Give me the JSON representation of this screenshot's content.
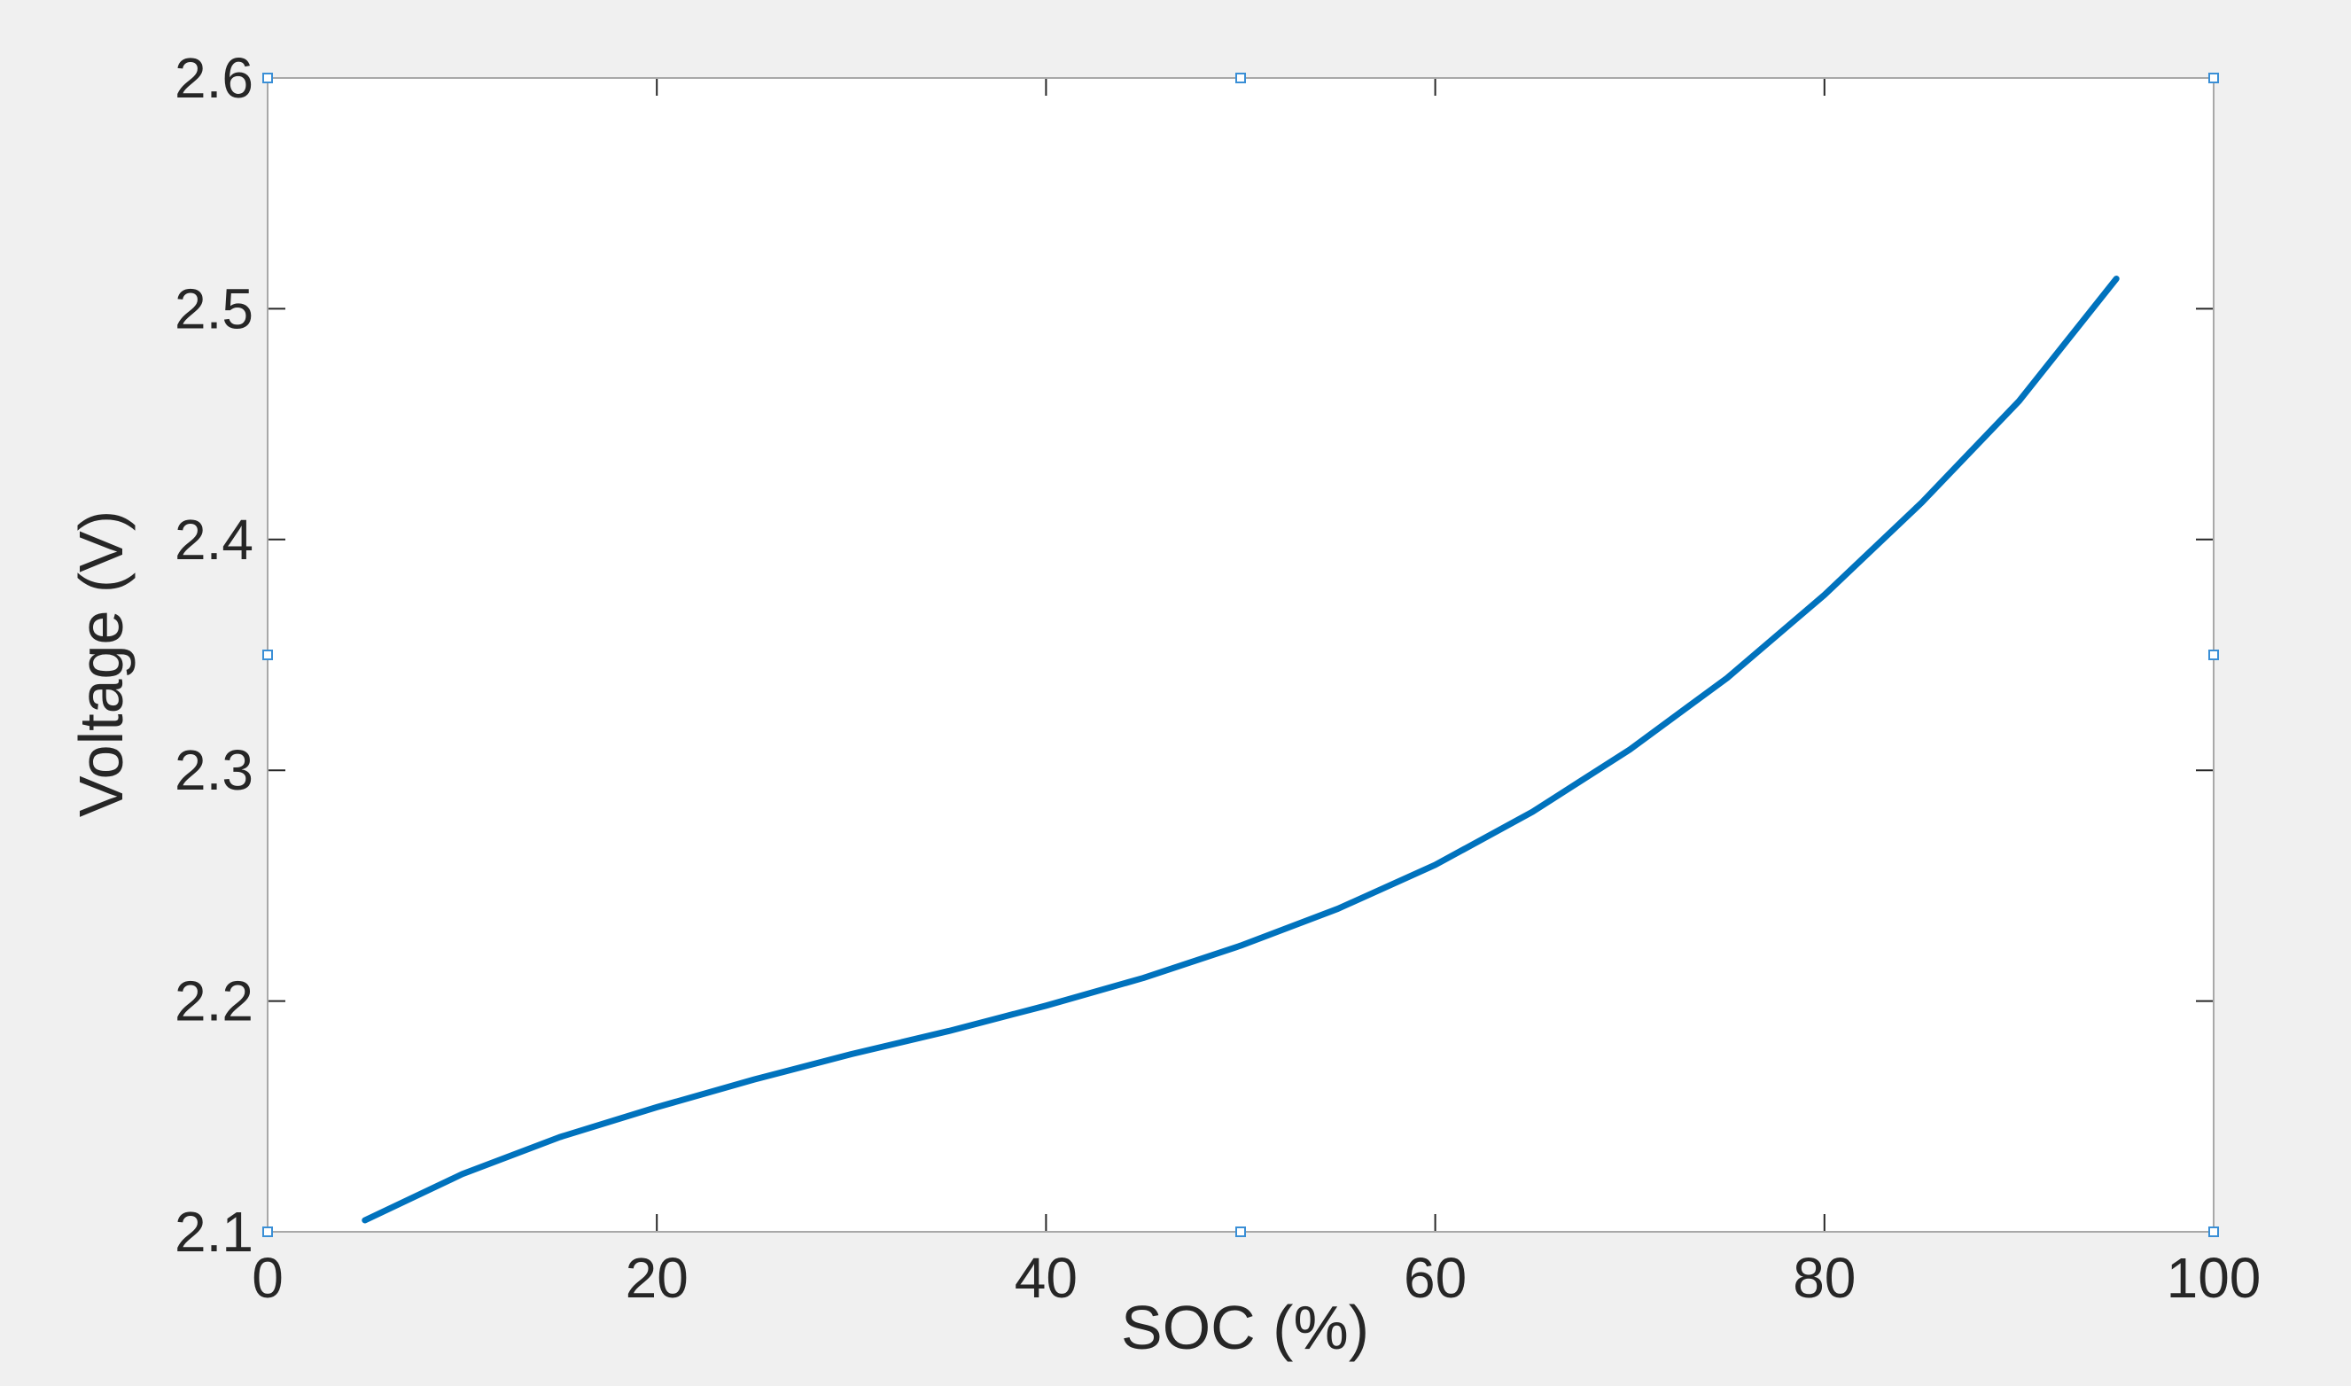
{
  "chart_data": {
    "type": "line",
    "title": "",
    "xlabel": "SOC (%)",
    "ylabel": "Voltage (V)",
    "xlim": [
      0,
      100
    ],
    "ylim": [
      2.1,
      2.6
    ],
    "xticks": [
      0,
      20,
      40,
      60,
      80,
      100
    ],
    "yticks": [
      2.1,
      2.2,
      2.3,
      2.4,
      2.5,
      2.6
    ],
    "xtick_labels": [
      "0",
      "20",
      "40",
      "60",
      "80",
      "100"
    ],
    "ytick_labels": [
      "2.1",
      "2.2",
      "2.3",
      "2.4",
      "2.5",
      "2.6"
    ],
    "grid": false,
    "legend": "none",
    "series": [
      {
        "color": "#0072bd",
        "x": [
          5,
          10,
          15,
          20,
          25,
          30,
          35,
          40,
          45,
          50,
          55,
          60,
          65,
          70,
          75,
          80,
          85,
          90,
          95
        ],
        "y": [
          2.105,
          2.125,
          2.141,
          2.154,
          2.166,
          2.177,
          2.187,
          2.198,
          2.21,
          2.224,
          2.24,
          2.259,
          2.282,
          2.309,
          2.34,
          2.376,
          2.416,
          2.46,
          2.513
        ]
      }
    ],
    "background_color": "#f0f0f0",
    "axes_color": "#ffffff",
    "frame_color": "#262626"
  }
}
